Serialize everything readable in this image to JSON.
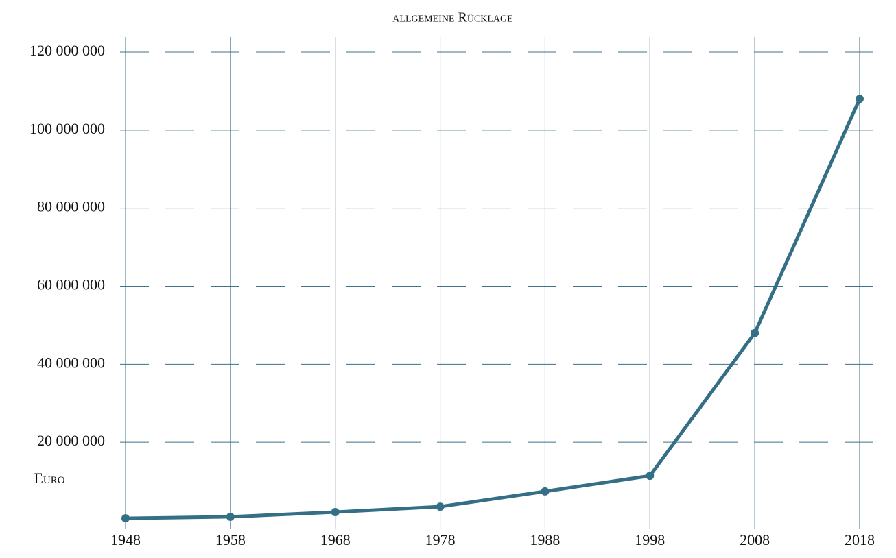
{
  "chart_data": {
    "type": "line",
    "title": "allgemeine Rücklage",
    "y_label": "Euro",
    "x": [
      1948,
      1958,
      1968,
      1978,
      1988,
      1998,
      2008,
      2018
    ],
    "series": [
      {
        "name": "allgemeine Rücklage",
        "color": "#356f86",
        "values": [
          500000,
          900000,
          2100000,
          3500000,
          7400000,
          11400000,
          48000000,
          108000000
        ]
      }
    ],
    "xlim": [
      1948,
      2018
    ],
    "xticks": [
      1948,
      1958,
      1968,
      1978,
      1988,
      1998,
      2008,
      2018
    ],
    "ylim": [
      0,
      120000000
    ],
    "yticks": [
      {
        "value": 20000000,
        "label": "20 000 000"
      },
      {
        "value": 40000000,
        "label": "40 000 000"
      },
      {
        "value": 60000000,
        "label": "60 000 000"
      },
      {
        "value": 80000000,
        "label": "80 000 000"
      },
      {
        "value": 100000000,
        "label": "100 000 000"
      },
      {
        "value": 120000000,
        "label": "120 000 000"
      }
    ],
    "grid": true
  }
}
